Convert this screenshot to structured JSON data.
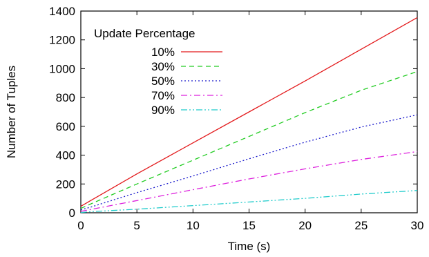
{
  "chart_data": {
    "type": "line",
    "title": "",
    "xlabel": "Time (s)",
    "ylabel": "Number of Tuples",
    "xlim": [
      0,
      30
    ],
    "ylim": [
      0,
      1400
    ],
    "xticks": [
      0,
      5,
      10,
      15,
      20,
      25,
      30
    ],
    "yticks": [
      0,
      200,
      400,
      600,
      800,
      1000,
      1200,
      1400
    ],
    "grid": false,
    "legend": {
      "title": "Update Percentage",
      "position": "top-left"
    },
    "series": [
      {
        "name": "10%",
        "color": "#e31a1c",
        "dash": "solid",
        "x": [
          0,
          1,
          5,
          10,
          15,
          20,
          25,
          30
        ],
        "y": [
          45,
          90,
          270,
          485,
          700,
          915,
          1135,
          1355
        ]
      },
      {
        "name": "30%",
        "color": "#22cc22",
        "dash": "dashed",
        "x": [
          0,
          1,
          5,
          10,
          15,
          20,
          25,
          30
        ],
        "y": [
          30,
          65,
          200,
          365,
          530,
          695,
          850,
          980
        ]
      },
      {
        "name": "50%",
        "color": "#1a1acc",
        "dash": "dotted",
        "x": [
          0,
          1,
          5,
          10,
          15,
          20,
          25,
          30
        ],
        "y": [
          20,
          42,
          140,
          255,
          375,
          490,
          595,
          680
        ]
      },
      {
        "name": "70%",
        "color": "#dd22dd",
        "dash": "dash-dot",
        "x": [
          0,
          1,
          5,
          10,
          15,
          20,
          25,
          30
        ],
        "y": [
          10,
          25,
          85,
          160,
          235,
          305,
          370,
          425
        ]
      },
      {
        "name": "90%",
        "color": "#22cccc",
        "dash": "dash-dot-dot",
        "x": [
          0,
          1,
          5,
          10,
          15,
          20,
          25,
          30
        ],
        "y": [
          2,
          8,
          25,
          50,
          75,
          100,
          130,
          155
        ]
      }
    ]
  }
}
